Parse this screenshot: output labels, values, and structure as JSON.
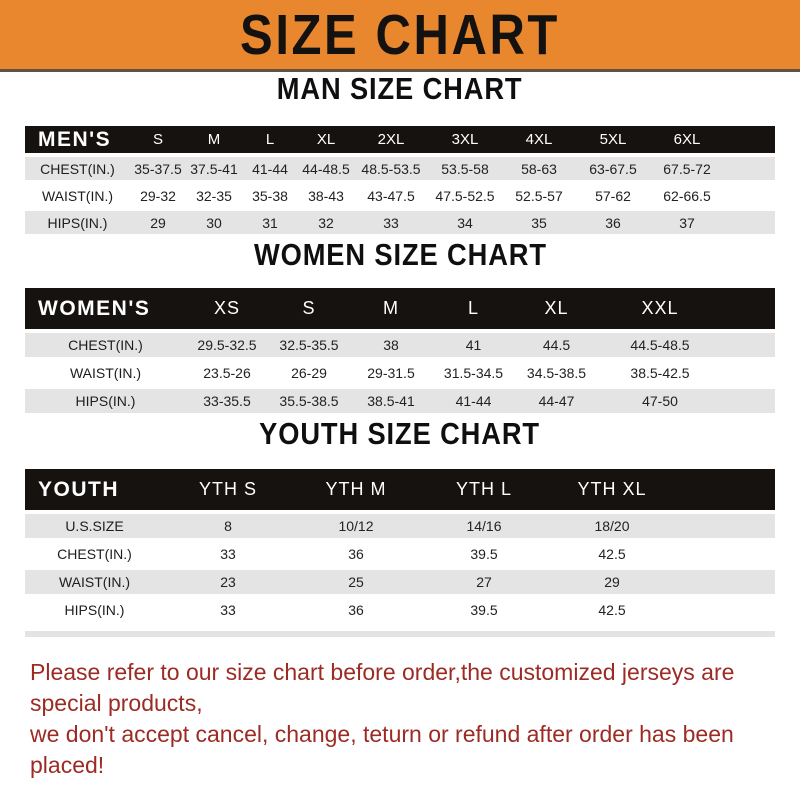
{
  "banner": {
    "title": "SIZE CHART"
  },
  "sections": [
    {
      "heading": "MAN SIZE CHART",
      "header_label": "MEN'S",
      "columns": [
        "S",
        "M",
        "L",
        "XL",
        "2XL",
        "3XL",
        "4XL",
        "5XL",
        "6XL"
      ],
      "rows": [
        {
          "label": "CHEST(IN.)",
          "values": [
            "35-37.5",
            "37.5-41",
            "41-44",
            "44-48.5",
            "48.5-53.5",
            "53.5-58",
            "58-63",
            "63-67.5",
            "67.5-72"
          ]
        },
        {
          "label": "WAIST(IN.)",
          "values": [
            "29-32",
            "32-35",
            "35-38",
            "38-43",
            "43-47.5",
            "47.5-52.5",
            "52.5-57",
            "57-62",
            "62-66.5"
          ]
        },
        {
          "label": "HIPS(IN.)",
          "values": [
            "29",
            "30",
            "31",
            "32",
            "33",
            "34",
            "35",
            "36",
            "37"
          ]
        }
      ]
    },
    {
      "heading": "WOMEN SIZE CHART",
      "header_label": "WOMEN'S",
      "columns": [
        "XS",
        "S",
        "M",
        "L",
        "XL",
        "XXL"
      ],
      "rows": [
        {
          "label": "CHEST(IN.)",
          "values": [
            "29.5-32.5",
            "32.5-35.5",
            "38",
            "41",
            "44.5",
            "44.5-48.5"
          ]
        },
        {
          "label": "WAIST(IN.)",
          "values": [
            "23.5-26",
            "26-29",
            "29-31.5",
            "31.5-34.5",
            "34.5-38.5",
            "38.5-42.5"
          ]
        },
        {
          "label": "HIPS(IN.)",
          "values": [
            "33-35.5",
            "35.5-38.5",
            "38.5-41",
            "41-44",
            "44-47",
            "47-50"
          ]
        }
      ]
    },
    {
      "heading": "YOUTH SIZE CHART",
      "header_label": "YOUTH",
      "columns": [
        "YTH S",
        "YTH M",
        "YTH L",
        "YTH XL"
      ],
      "rows": [
        {
          "label": "U.S.SIZE",
          "values": [
            "8",
            "10/12",
            "14/16",
            "18/20"
          ]
        },
        {
          "label": "CHEST(IN.)",
          "values": [
            "33",
            "36",
            "39.5",
            "42.5"
          ]
        },
        {
          "label": "WAIST(IN.)",
          "values": [
            "23",
            "25",
            "27",
            "29"
          ]
        },
        {
          "label": "HIPS(IN.)",
          "values": [
            "33",
            "36",
            "39.5",
            "42.5"
          ]
        }
      ]
    }
  ],
  "disclaimer": {
    "line1": "Please refer to our size chart before order,the customized jerseys are special products,",
    "line2": "we don't accept cancel, change, teturn or refund after order has been placed!"
  },
  "colors": {
    "banner_bg": "#E9872E",
    "banner_text": "#141210",
    "table_header_bg": "#151210",
    "table_header_text": "#FFFFFF",
    "row_alt_bg": "#E4E4E4",
    "disclaimer_red": "#9C2B24"
  }
}
